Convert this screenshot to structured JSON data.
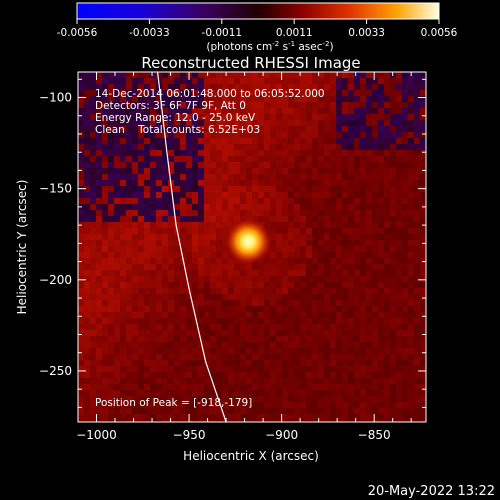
{
  "colorbar": {
    "ticks": [
      "-0.0056",
      "-0.0033",
      "-0.0011",
      "0.0011",
      "0.0033",
      "0.0056"
    ],
    "unit_pre": "(photons cm",
    "unit_sup1": "-2",
    "unit_mid": " s",
    "unit_sup2": "-1",
    "unit_post": " asec",
    "unit_sup3": "-2",
    "unit_end": ")"
  },
  "chart_data": {
    "type": "heatmap",
    "title": "Reconstructed RHESSI Image",
    "xlabel": "Heliocentric X (arcsec)",
    "ylabel": "Heliocentric Y (arcsec)",
    "xlim": [
      -1010,
      -822
    ],
    "ylim": [
      -278,
      -86
    ],
    "x_ticks": [
      -1000,
      -950,
      -900,
      -850
    ],
    "x_tick_labels": [
      "−1000",
      "−950",
      "−900",
      "−850"
    ],
    "y_ticks": [
      -100,
      -150,
      -200,
      -250
    ],
    "y_tick_labels": [
      "−100",
      "−150",
      "−200",
      "−250"
    ],
    "zlim": [
      -0.0056,
      0.0056
    ],
    "peak": {
      "x": -918,
      "y": -179
    },
    "limb_curve": [
      [
        -967,
        -86
      ],
      [
        -962,
        -130
      ],
      [
        -957,
        -170
      ],
      [
        -950,
        -205
      ],
      [
        -941,
        -245
      ],
      [
        -930,
        -278
      ]
    ],
    "annotations": [
      "14-Dec-2014 06:01:48.000 to 06:05:52.000",
      "Detectors: 3F 6F 7F 9F, Att 0",
      "Energy Range: 12.0 - 25.0 keV",
      "Clean    Total counts: 6.52E+03"
    ],
    "peak_label": "Position of Peak = [-918,-179]"
  },
  "footer": {
    "timestamp": "20-May-2022 13:22"
  }
}
